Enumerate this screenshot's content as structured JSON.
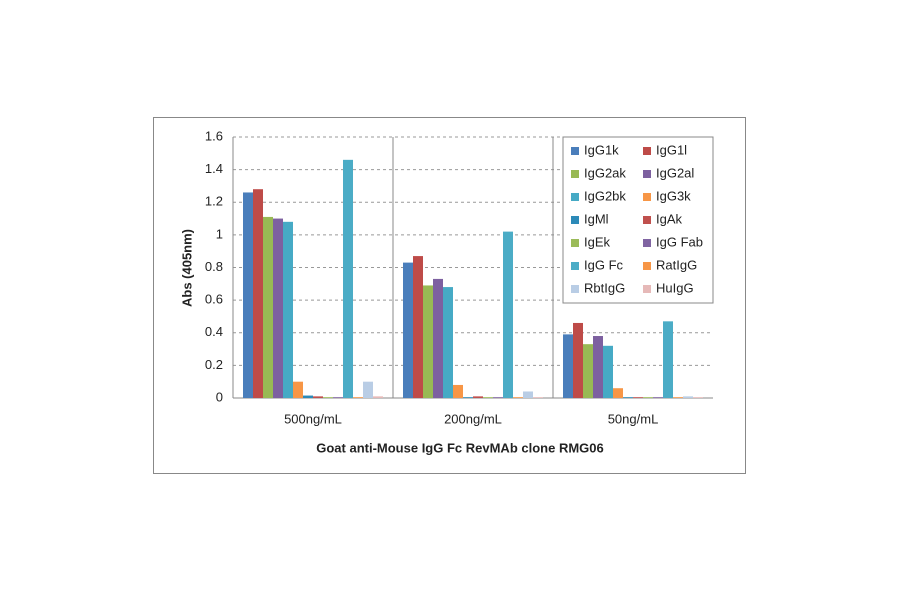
{
  "chart_data": {
    "type": "bar",
    "x_label": "Goat anti-Mouse IgG Fc RevMAb clone RMG06",
    "y_label": "Abs (405nm)",
    "categories": [
      "500ng/mL",
      "200ng/mL",
      "50ng/mL"
    ],
    "ylim": [
      0,
      1.6
    ],
    "yticks": [
      0,
      0.2,
      0.4,
      0.6,
      0.8,
      1,
      1.2,
      1.4,
      1.6
    ],
    "grid": true,
    "legend": "upper-right",
    "series": [
      {
        "name": "IgG1k",
        "color": "#4a7ebb",
        "values": [
          1.26,
          0.83,
          0.39
        ]
      },
      {
        "name": "IgG1l",
        "color": "#be4b48",
        "values": [
          1.28,
          0.87,
          0.46
        ]
      },
      {
        "name": "IgG2ak",
        "color": "#98b954",
        "values": [
          1.11,
          0.69,
          0.33
        ]
      },
      {
        "name": "IgG2al",
        "color": "#7d60a0",
        "values": [
          1.1,
          0.73,
          0.38
        ]
      },
      {
        "name": "IgG2bk",
        "color": "#46aac5",
        "values": [
          1.08,
          0.68,
          0.32
        ]
      },
      {
        "name": "IgG3k",
        "color": "#f79646",
        "values": [
          0.1,
          0.08,
          0.06
        ]
      },
      {
        "name": "IgMl",
        "color": "#2c8ab8",
        "values": [
          0.015,
          0.005,
          0.005
        ]
      },
      {
        "name": "IgAk",
        "color": "#c0504d",
        "values": [
          0.01,
          0.01,
          0.005
        ]
      },
      {
        "name": "IgEk",
        "color": "#9bbb59",
        "values": [
          0.005,
          0.005,
          0.005
        ]
      },
      {
        "name": "IgG Fab",
        "color": "#8064a2",
        "values": [
          0.005,
          0.005,
          0.005
        ]
      },
      {
        "name": "IgG Fc",
        "color": "#4bacc6",
        "values": [
          1.46,
          1.02,
          0.47
        ]
      },
      {
        "name": "RatIgG",
        "color": "#f79646",
        "values": [
          0.005,
          0.005,
          0.005
        ]
      },
      {
        "name": "RbtIgG",
        "color": "#b9cde5",
        "values": [
          0.1,
          0.04,
          0.01
        ]
      },
      {
        "name": "HuIgG",
        "color": "#e6b9b8",
        "values": [
          0.01,
          0.005,
          0.005
        ]
      }
    ]
  }
}
